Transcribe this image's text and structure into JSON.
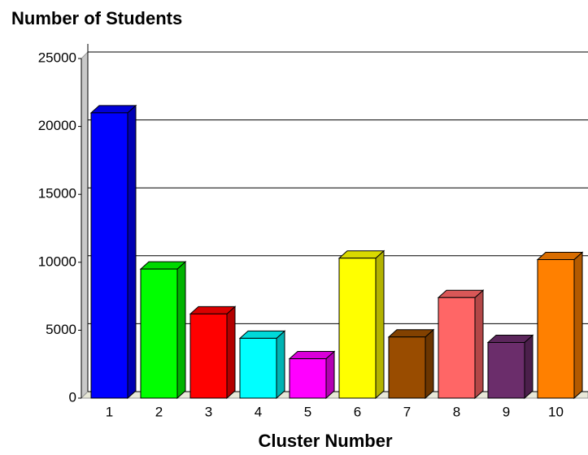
{
  "chart_data": {
    "type": "bar",
    "title": "Number of Students",
    "x_label": "Cluster Number",
    "categories": [
      "1",
      "2",
      "3",
      "4",
      "5",
      "6",
      "7",
      "8",
      "9",
      "10"
    ],
    "values": [
      21000,
      9500,
      6200,
      4400,
      2900,
      10300,
      4500,
      7400,
      4100,
      10200
    ],
    "colors": [
      "#0000ff",
      "#00ff00",
      "#ff0000",
      "#00ffff",
      "#ff00ff",
      "#ffff00",
      "#994c00",
      "#ff6666",
      "#6b2d6b",
      "#ff8000"
    ],
    "ylim": [
      0,
      25000
    ],
    "yticks": [
      0,
      5000,
      10000,
      15000,
      20000,
      25000
    ],
    "grid": true
  }
}
